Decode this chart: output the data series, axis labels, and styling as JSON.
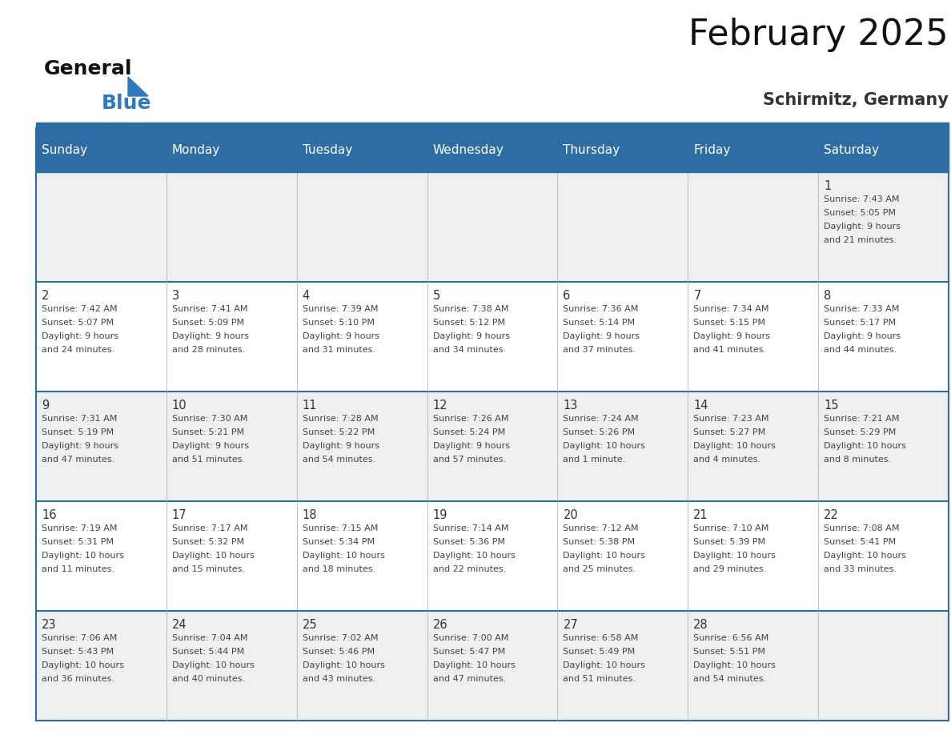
{
  "title": "February 2025",
  "subtitle": "Schirmitz, Germany",
  "days_of_week": [
    "Sunday",
    "Monday",
    "Tuesday",
    "Wednesday",
    "Thursday",
    "Friday",
    "Saturday"
  ],
  "header_bg": "#2e6da4",
  "header_text": "#ffffff",
  "cell_bg_gray": "#efefef",
  "cell_bg_white": "#ffffff",
  "border_color": "#2e6da4",
  "day_number_color": "#333333",
  "text_color": "#444444",
  "logo_general_color": "#111111",
  "logo_blue_color": "#2e7abf",
  "calendar_data": [
    [
      null,
      null,
      null,
      null,
      null,
      null,
      {
        "day": 1,
        "sunrise": "7:43 AM",
        "sunset": "5:05 PM",
        "daylight_line1": "Daylight: 9 hours",
        "daylight_line2": "and 21 minutes."
      }
    ],
    [
      {
        "day": 2,
        "sunrise": "7:42 AM",
        "sunset": "5:07 PM",
        "daylight_line1": "Daylight: 9 hours",
        "daylight_line2": "and 24 minutes."
      },
      {
        "day": 3,
        "sunrise": "7:41 AM",
        "sunset": "5:09 PM",
        "daylight_line1": "Daylight: 9 hours",
        "daylight_line2": "and 28 minutes."
      },
      {
        "day": 4,
        "sunrise": "7:39 AM",
        "sunset": "5:10 PM",
        "daylight_line1": "Daylight: 9 hours",
        "daylight_line2": "and 31 minutes."
      },
      {
        "day": 5,
        "sunrise": "7:38 AM",
        "sunset": "5:12 PM",
        "daylight_line1": "Daylight: 9 hours",
        "daylight_line2": "and 34 minutes."
      },
      {
        "day": 6,
        "sunrise": "7:36 AM",
        "sunset": "5:14 PM",
        "daylight_line1": "Daylight: 9 hours",
        "daylight_line2": "and 37 minutes."
      },
      {
        "day": 7,
        "sunrise": "7:34 AM",
        "sunset": "5:15 PM",
        "daylight_line1": "Daylight: 9 hours",
        "daylight_line2": "and 41 minutes."
      },
      {
        "day": 8,
        "sunrise": "7:33 AM",
        "sunset": "5:17 PM",
        "daylight_line1": "Daylight: 9 hours",
        "daylight_line2": "and 44 minutes."
      }
    ],
    [
      {
        "day": 9,
        "sunrise": "7:31 AM",
        "sunset": "5:19 PM",
        "daylight_line1": "Daylight: 9 hours",
        "daylight_line2": "and 47 minutes."
      },
      {
        "day": 10,
        "sunrise": "7:30 AM",
        "sunset": "5:21 PM",
        "daylight_line1": "Daylight: 9 hours",
        "daylight_line2": "and 51 minutes."
      },
      {
        "day": 11,
        "sunrise": "7:28 AM",
        "sunset": "5:22 PM",
        "daylight_line1": "Daylight: 9 hours",
        "daylight_line2": "and 54 minutes."
      },
      {
        "day": 12,
        "sunrise": "7:26 AM",
        "sunset": "5:24 PM",
        "daylight_line1": "Daylight: 9 hours",
        "daylight_line2": "and 57 minutes."
      },
      {
        "day": 13,
        "sunrise": "7:24 AM",
        "sunset": "5:26 PM",
        "daylight_line1": "Daylight: 10 hours",
        "daylight_line2": "and 1 minute."
      },
      {
        "day": 14,
        "sunrise": "7:23 AM",
        "sunset": "5:27 PM",
        "daylight_line1": "Daylight: 10 hours",
        "daylight_line2": "and 4 minutes."
      },
      {
        "day": 15,
        "sunrise": "7:21 AM",
        "sunset": "5:29 PM",
        "daylight_line1": "Daylight: 10 hours",
        "daylight_line2": "and 8 minutes."
      }
    ],
    [
      {
        "day": 16,
        "sunrise": "7:19 AM",
        "sunset": "5:31 PM",
        "daylight_line1": "Daylight: 10 hours",
        "daylight_line2": "and 11 minutes."
      },
      {
        "day": 17,
        "sunrise": "7:17 AM",
        "sunset": "5:32 PM",
        "daylight_line1": "Daylight: 10 hours",
        "daylight_line2": "and 15 minutes."
      },
      {
        "day": 18,
        "sunrise": "7:15 AM",
        "sunset": "5:34 PM",
        "daylight_line1": "Daylight: 10 hours",
        "daylight_line2": "and 18 minutes."
      },
      {
        "day": 19,
        "sunrise": "7:14 AM",
        "sunset": "5:36 PM",
        "daylight_line1": "Daylight: 10 hours",
        "daylight_line2": "and 22 minutes."
      },
      {
        "day": 20,
        "sunrise": "7:12 AM",
        "sunset": "5:38 PM",
        "daylight_line1": "Daylight: 10 hours",
        "daylight_line2": "and 25 minutes."
      },
      {
        "day": 21,
        "sunrise": "7:10 AM",
        "sunset": "5:39 PM",
        "daylight_line1": "Daylight: 10 hours",
        "daylight_line2": "and 29 minutes."
      },
      {
        "day": 22,
        "sunrise": "7:08 AM",
        "sunset": "5:41 PM",
        "daylight_line1": "Daylight: 10 hours",
        "daylight_line2": "and 33 minutes."
      }
    ],
    [
      {
        "day": 23,
        "sunrise": "7:06 AM",
        "sunset": "5:43 PM",
        "daylight_line1": "Daylight: 10 hours",
        "daylight_line2": "and 36 minutes."
      },
      {
        "day": 24,
        "sunrise": "7:04 AM",
        "sunset": "5:44 PM",
        "daylight_line1": "Daylight: 10 hours",
        "daylight_line2": "and 40 minutes."
      },
      {
        "day": 25,
        "sunrise": "7:02 AM",
        "sunset": "5:46 PM",
        "daylight_line1": "Daylight: 10 hours",
        "daylight_line2": "and 43 minutes."
      },
      {
        "day": 26,
        "sunrise": "7:00 AM",
        "sunset": "5:47 PM",
        "daylight_line1": "Daylight: 10 hours",
        "daylight_line2": "and 47 minutes."
      },
      {
        "day": 27,
        "sunrise": "6:58 AM",
        "sunset": "5:49 PM",
        "daylight_line1": "Daylight: 10 hours",
        "daylight_line2": "and 51 minutes."
      },
      {
        "day": 28,
        "sunrise": "6:56 AM",
        "sunset": "5:51 PM",
        "daylight_line1": "Daylight: 10 hours",
        "daylight_line2": "and 54 minutes."
      },
      null
    ]
  ],
  "row_bg": [
    "#efefef",
    "#ffffff",
    "#efefef",
    "#ffffff",
    "#efefef"
  ]
}
